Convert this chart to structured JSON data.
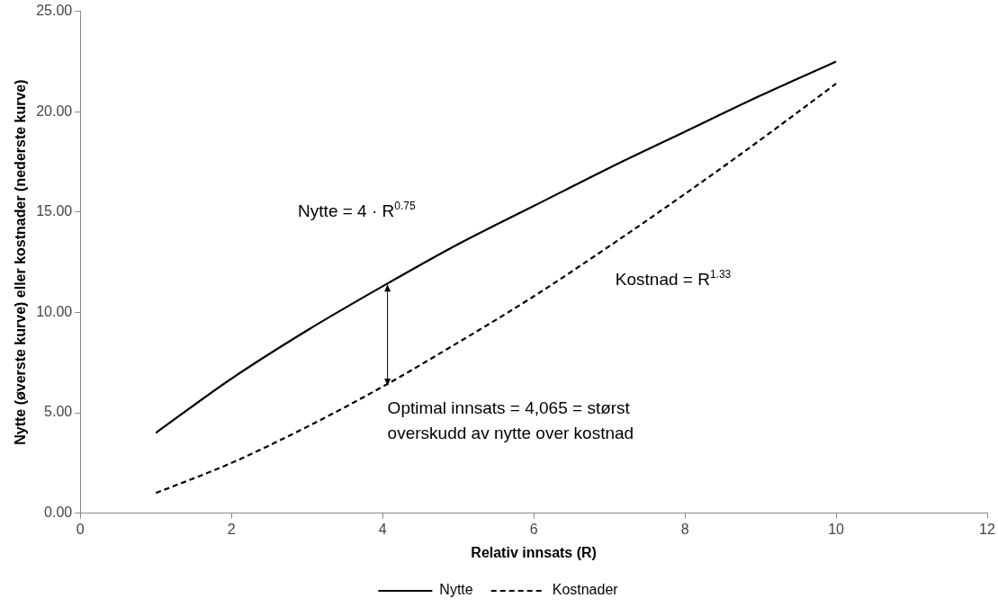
{
  "chart_data": {
    "type": "line",
    "xlabel": "Relativ innsats (R)",
    "ylabel": "Nytte (øverste kurve) eller kostnader (nederste kurve)",
    "x": [
      1,
      2,
      3,
      4,
      5,
      6,
      7,
      8,
      9,
      10
    ],
    "series": [
      {
        "name": "Nytte",
        "color": "#000000",
        "line_style": "solid",
        "values": [
          4.0,
          6.7,
          9.1,
          11.3,
          13.4,
          15.3,
          17.2,
          19.0,
          20.8,
          22.5
        ]
      },
      {
        "name": "Kostnader",
        "color": "#000000",
        "line_style": "dashed",
        "values": [
          1.0,
          2.5,
          4.3,
          6.3,
          8.5,
          10.8,
          13.3,
          15.9,
          18.6,
          21.4
        ]
      }
    ],
    "xlim": [
      0,
      12
    ],
    "xticks": [
      0,
      2,
      4,
      6,
      8,
      10,
      12
    ],
    "ylim": [
      0,
      25
    ],
    "yticks": [
      {
        "value": 0,
        "label": "0.00"
      },
      {
        "value": 5,
        "label": "5.00"
      },
      {
        "value": 10,
        "label": "10.00"
      },
      {
        "value": 15,
        "label": "15.00"
      },
      {
        "value": 20,
        "label": "20.00"
      },
      {
        "value": 25,
        "label": "25.00"
      }
    ],
    "grid": false,
    "legend": "bottom",
    "marker": "none",
    "annotations": [
      "Nytte = 4 · R$^{0.75}$",
      "Kostnad = R$^{1.33}$",
      {
        "text": "Optimal innsats = 4,065 = størst overskudd av nytte over kostnad",
        "x": 4.065,
        "y": 6.3
      }
    ]
  }
}
